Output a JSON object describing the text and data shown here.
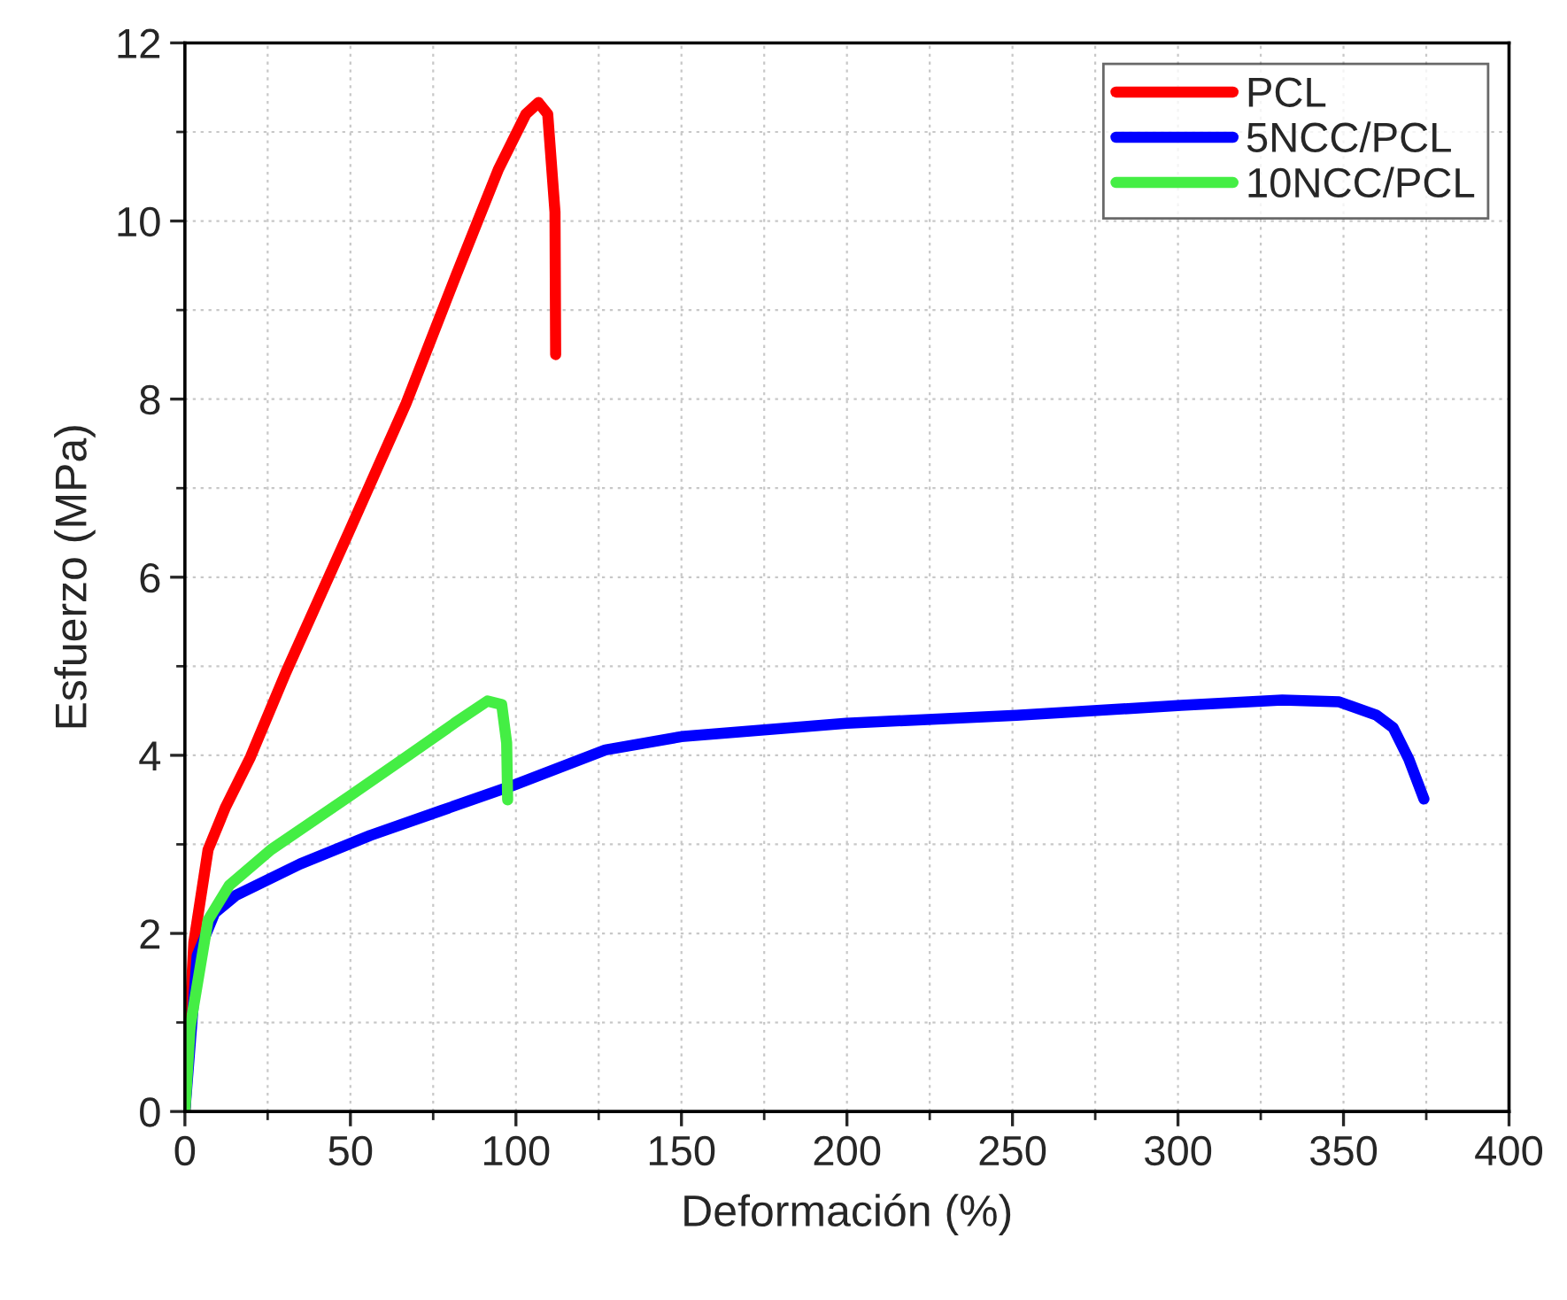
{
  "chart_data": {
    "type": "line",
    "xlabel": "Deformación (%)",
    "ylabel": "Esfuerzo (MPa)",
    "xlim": [
      0,
      400
    ],
    "xticks": [
      0,
      50,
      100,
      150,
      200,
      250,
      300,
      350,
      400
    ],
    "ylim": [
      0,
      12
    ],
    "yticks": [
      0,
      2,
      4,
      6,
      8,
      10,
      12
    ],
    "grid": true,
    "legend": "top right",
    "marker": "none",
    "line_style": "solid",
    "series": [
      {
        "name": "PCL",
        "color": "#ff0000",
        "x": [
          0,
          2.7,
          7,
          12.3,
          19.8,
          30.5,
          49.7,
          66.8,
          81.8,
          94.7,
          103,
          106.8,
          109.6,
          111.8,
          112
        ],
        "values": [
          0,
          1.9,
          2.94,
          3.42,
          3.98,
          4.93,
          6.52,
          7.95,
          9.38,
          10.58,
          11.2,
          11.33,
          11.2,
          10.1,
          8.5
        ]
      },
      {
        "name": "5NCC/PCL",
        "color": "#0000ff",
        "x": [
          0,
          3.7,
          9,
          15.5,
          34.8,
          56,
          77.5,
          99,
          127,
          150,
          199.8,
          251.3,
          301,
          331.5,
          348.7,
          360,
          365,
          369.7,
          374.3
        ],
        "values": [
          0,
          1.75,
          2.23,
          2.43,
          2.78,
          3.1,
          3.38,
          3.66,
          4.06,
          4.21,
          4.36,
          4.45,
          4.56,
          4.62,
          4.6,
          4.45,
          4.31,
          3.96,
          3.51
        ]
      },
      {
        "name": "10NCC/PCL",
        "color": "#44ee44",
        "x": [
          0,
          1.6,
          7,
          13.4,
          26,
          49.7,
          66.8,
          81.8,
          91.4,
          95.7,
          97.2,
          97.5
        ],
        "values": [
          0,
          0.95,
          2.15,
          2.54,
          2.94,
          3.54,
          3.98,
          4.37,
          4.61,
          4.57,
          4.14,
          3.5
        ]
      }
    ]
  }
}
